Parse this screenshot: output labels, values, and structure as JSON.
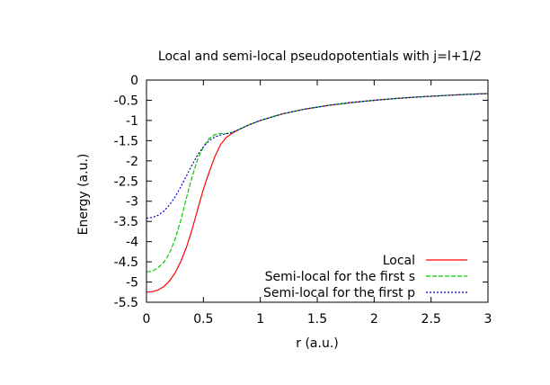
{
  "chart_data": {
    "type": "line",
    "title": "Local and semi-local pseudopotentials with j=l+1/2",
    "xlabel": "r (a.u.)",
    "ylabel": "Energy (a.u.)",
    "xlim": [
      0,
      3
    ],
    "ylim": [
      -5.5,
      0
    ],
    "xticks": [
      0,
      0.5,
      1,
      1.5,
      2,
      2.5,
      3
    ],
    "xtick_labels": [
      "0",
      "0.5",
      "1",
      "1.5",
      "2",
      "2.5",
      "3"
    ],
    "yticks": [
      0,
      -0.5,
      -1,
      -1.5,
      -2,
      -2.5,
      -3,
      -3.5,
      -4,
      -4.5,
      -5,
      -5.5
    ],
    "ytick_labels": [
      "0",
      "-0.5",
      "-1",
      "-1.5",
      "-2",
      "-2.5",
      "-3",
      "-3.5",
      "-4",
      "-4.5",
      "-5",
      "-5.5"
    ],
    "grid": false,
    "legend_position": "bottom-right",
    "series": [
      {
        "name": "Local",
        "color": "#ff0000",
        "dash": "solid",
        "x": [
          0,
          0.05,
          0.1,
          0.15,
          0.2,
          0.25,
          0.3,
          0.35,
          0.4,
          0.45,
          0.5,
          0.55,
          0.6,
          0.65,
          0.7,
          0.75,
          0.8,
          0.9,
          1.0,
          1.2,
          1.4,
          1.6,
          1.8,
          2.0,
          2.2,
          2.4,
          2.6,
          2.8,
          3.0
        ],
        "y": [
          -5.25,
          -5.24,
          -5.2,
          -5.12,
          -4.98,
          -4.78,
          -4.5,
          -4.15,
          -3.7,
          -3.2,
          -2.7,
          -2.28,
          -1.9,
          -1.6,
          -1.42,
          -1.32,
          -1.24,
          -1.11,
          -1.0,
          -0.833,
          -0.714,
          -0.625,
          -0.556,
          -0.5,
          -0.455,
          -0.417,
          -0.385,
          -0.357,
          -0.333
        ]
      },
      {
        "name": "Semi-local for the first s",
        "color": "#00cc00",
        "dash": "dashed",
        "x": [
          0,
          0.05,
          0.1,
          0.15,
          0.2,
          0.25,
          0.3,
          0.35,
          0.4,
          0.45,
          0.5,
          0.55,
          0.6,
          0.65,
          0.7,
          0.75,
          0.8,
          0.9,
          1.0,
          1.2,
          1.4,
          1.6,
          1.8,
          2.0,
          2.2,
          2.4,
          2.6,
          2.8,
          3.0
        ],
        "y": [
          -4.75,
          -4.73,
          -4.65,
          -4.52,
          -4.3,
          -3.95,
          -3.48,
          -2.93,
          -2.4,
          -1.95,
          -1.65,
          -1.45,
          -1.35,
          -1.32,
          -1.33,
          -1.3,
          -1.24,
          -1.11,
          -1.0,
          -0.833,
          -0.714,
          -0.625,
          -0.556,
          -0.5,
          -0.455,
          -0.417,
          -0.385,
          -0.357,
          -0.333
        ]
      },
      {
        "name": "Semi-local for the first p",
        "color": "#0000cc",
        "dash": "dotted",
        "x": [
          0,
          0.05,
          0.1,
          0.15,
          0.2,
          0.25,
          0.3,
          0.35,
          0.4,
          0.45,
          0.5,
          0.55,
          0.6,
          0.65,
          0.7,
          0.75,
          0.8,
          0.9,
          1.0,
          1.2,
          1.4,
          1.6,
          1.8,
          2.0,
          2.2,
          2.4,
          2.6,
          2.8,
          3.0
        ],
        "y": [
          -3.42,
          -3.4,
          -3.35,
          -3.25,
          -3.1,
          -2.9,
          -2.65,
          -2.38,
          -2.1,
          -1.85,
          -1.65,
          -1.5,
          -1.41,
          -1.36,
          -1.33,
          -1.3,
          -1.24,
          -1.11,
          -1.0,
          -0.833,
          -0.714,
          -0.625,
          -0.556,
          -0.5,
          -0.455,
          -0.417,
          -0.385,
          -0.357,
          -0.333
        ]
      }
    ]
  }
}
